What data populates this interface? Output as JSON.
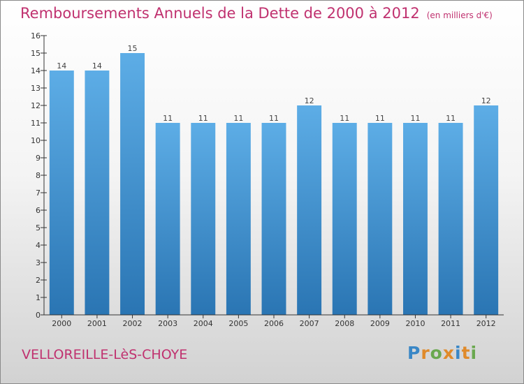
{
  "header": {
    "title": "Remboursements Annuels de la Dette de 2000 à 2012",
    "unit": "(en milliers d'€)"
  },
  "footer": {
    "commune": "VELLOREILLE-LèS-CHOYE",
    "logo_text": "Proxiti",
    "logo_colors": [
      "#3a87c6",
      "#e08a2a",
      "#6aa84f",
      "#e08a2a",
      "#3a87c6",
      "#e08a2a",
      "#6aa84f"
    ]
  },
  "colors": {
    "bar_light": "#5dade6",
    "bar_dark": "#2a75b3",
    "accent": "#c0316f",
    "axis": "#333333"
  },
  "chart_data": {
    "type": "bar",
    "title": "Remboursements Annuels de la Dette de 2000 à 2012",
    "categories": [
      "2000",
      "2001",
      "2002",
      "2003",
      "2004",
      "2005",
      "2006",
      "2007",
      "2008",
      "2009",
      "2010",
      "2011",
      "2012"
    ],
    "values": [
      14,
      14,
      15,
      11,
      11,
      11,
      11,
      12,
      11,
      11,
      11,
      11,
      12
    ],
    "ylim": [
      0,
      16
    ],
    "yticks": [
      0,
      1,
      2,
      3,
      4,
      5,
      6,
      7,
      8,
      9,
      10,
      11,
      12,
      13,
      14,
      15,
      16
    ],
    "xlabel": "",
    "ylabel": "",
    "grid": false,
    "data_labels": true
  }
}
